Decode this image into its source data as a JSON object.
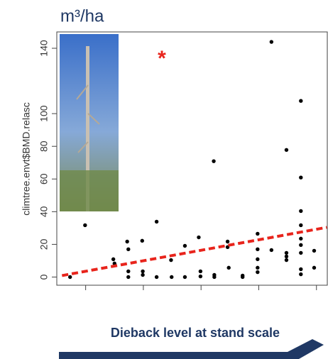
{
  "chart_data": {
    "type": "scatter",
    "title": "m³/ha",
    "y_label": "climtree.envt$BMD.relasc",
    "x_label": "Dieback level at stand scale",
    "annotation": "*",
    "xlim": [
      -0.5,
      4.2
    ],
    "ylim": [
      -5,
      150
    ],
    "xticks": [
      0,
      1,
      2,
      3,
      4
    ],
    "yticks": [
      0,
      20,
      40,
      60,
      80,
      100,
      140
    ],
    "series": [
      {
        "color": "#000000",
        "x": [
          -0.27,
          -0.01,
          0.48,
          0.5,
          0.72,
          0.74,
          0.74,
          0.74,
          0.98,
          0.99,
          0.99,
          1.23,
          1.23,
          1.48,
          1.49,
          1.72,
          1.72,
          1.96,
          1.99,
          1.99,
          2.22,
          2.23,
          2.23,
          2.46,
          2.46,
          2.48,
          2.72,
          2.72,
          2.98,
          2.98,
          2.98,
          2.98,
          2.98,
          3.22,
          3.22,
          3.48,
          3.48,
          3.48,
          3.48,
          3.73,
          3.73,
          3.73,
          3.73,
          3.73,
          3.73,
          3.73,
          3.73,
          3.73,
          3.96,
          3.96
        ],
        "y": [
          0,
          31.7,
          10.9,
          8.3,
          21.7,
          17,
          3.5,
          0,
          22.2,
          3.5,
          1.3,
          33.9,
          0,
          10.4,
          0,
          19.1,
          0,
          24.3,
          3.5,
          0.4,
          70.9,
          1.3,
          0,
          21.7,
          18.3,
          5.7,
          0.9,
          0,
          26.5,
          17,
          10.9,
          5.7,
          3,
          143.9,
          16.5,
          77.8,
          14.8,
          12.6,
          10.4,
          107.8,
          60.9,
          40.4,
          31.7,
          23.5,
          19.6,
          14.8,
          4.8,
          1.7,
          16.1,
          5.7
        ]
      }
    ],
    "trend": {
      "color": "#e8241c",
      "x": [
        -0.41,
        4.18
      ],
      "y": [
        0.9,
        30.4
      ]
    }
  }
}
